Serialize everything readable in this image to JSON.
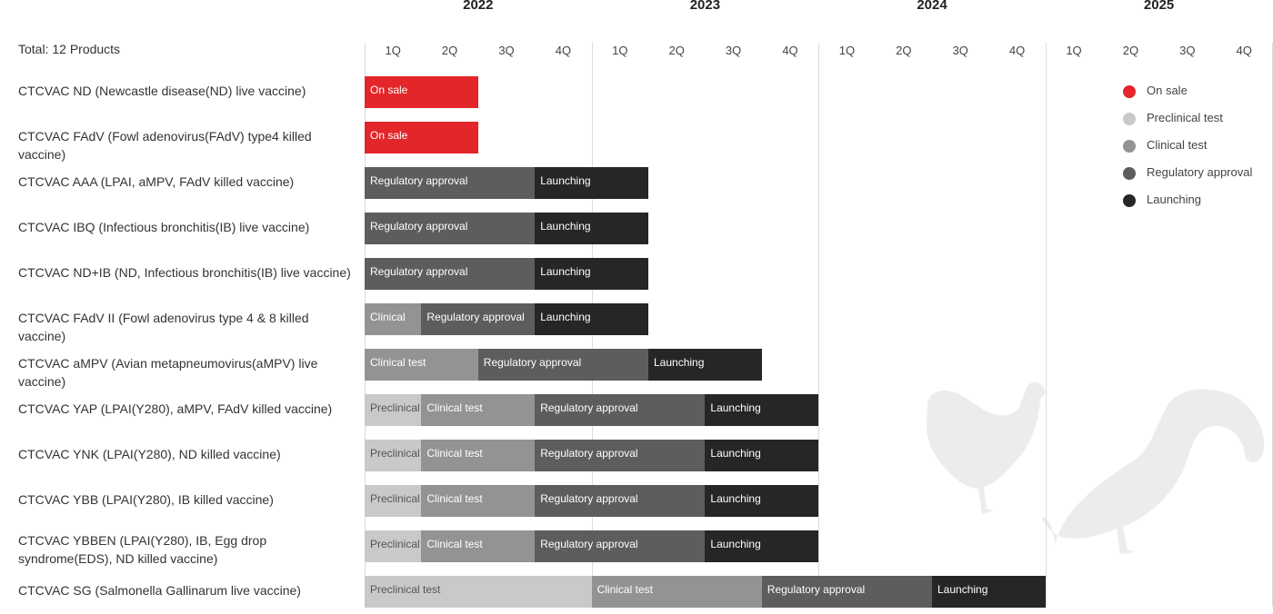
{
  "chart_data": {
    "type": "gantt",
    "total_label": "Total: 12 Products",
    "years": [
      "2022",
      "2023",
      "2024",
      "2025"
    ],
    "quarters": [
      "1Q",
      "2Q",
      "3Q",
      "4Q"
    ],
    "stage_colors": {
      "On sale": "#e3262a",
      "Preclinical": "#c9c9c9",
      "Preclinical test": "#c9c9c9",
      "Clinical": "#939393",
      "Clinical test": "#939393",
      "Regulatory approval": "#5d5d5d",
      "Launching": "#262626"
    },
    "legend": [
      {
        "label": "On sale",
        "color": "#e3262a"
      },
      {
        "label": "Preclinical test",
        "color": "#c9c9c9"
      },
      {
        "label": "Clinical test",
        "color": "#939393"
      },
      {
        "label": "Regulatory approval",
        "color": "#5d5d5d"
      },
      {
        "label": "Launching",
        "color": "#262626"
      }
    ],
    "products": [
      {
        "name": "CTCVAC ND (Newcastle disease(ND) live vaccine)",
        "segments": [
          {
            "stage": "On sale",
            "start": 0,
            "end": 2
          }
        ]
      },
      {
        "name": "CTCVAC FAdV (Fowl adenovirus(FAdV) type4 killed vaccine)",
        "segments": [
          {
            "stage": "On sale",
            "start": 0,
            "end": 2
          }
        ]
      },
      {
        "name": "CTCVAC AAA (LPAI, aMPV, FAdV killed vaccine)",
        "segments": [
          {
            "stage": "Regulatory approval",
            "start": 0,
            "end": 3
          },
          {
            "stage": "Launching",
            "start": 3,
            "end": 5
          }
        ]
      },
      {
        "name": "CTCVAC IBQ (Infectious bronchitis(IB) live vaccine)",
        "segments": [
          {
            "stage": "Regulatory approval",
            "start": 0,
            "end": 3
          },
          {
            "stage": "Launching",
            "start": 3,
            "end": 5
          }
        ]
      },
      {
        "name": "CTCVAC ND+IB (ND, Infectious bronchitis(IB) live vaccine)",
        "segments": [
          {
            "stage": "Regulatory approval",
            "start": 0,
            "end": 3
          },
          {
            "stage": "Launching",
            "start": 3,
            "end": 5
          }
        ]
      },
      {
        "name": "CTCVAC FAdV II (Fowl adenovirus type 4 & 8 killed vaccine)",
        "segments": [
          {
            "stage": "Clinical",
            "start": 0,
            "end": 1
          },
          {
            "stage": "Regulatory approval",
            "start": 1,
            "end": 3
          },
          {
            "stage": "Launching",
            "start": 3,
            "end": 5
          }
        ]
      },
      {
        "name": "CTCVAC aMPV (Avian metapneumovirus(aMPV) live vaccine)",
        "segments": [
          {
            "stage": "Clinical test",
            "start": 0,
            "end": 2
          },
          {
            "stage": "Regulatory approval",
            "start": 2,
            "end": 5
          },
          {
            "stage": "Launching",
            "start": 5,
            "end": 7
          }
        ]
      },
      {
        "name": "CTCVAC YAP (LPAI(Y280), aMPV, FAdV killed vaccine)",
        "segments": [
          {
            "stage": "Preclinical",
            "start": 0,
            "end": 1
          },
          {
            "stage": "Clinical test",
            "start": 1,
            "end": 3
          },
          {
            "stage": "Regulatory approval",
            "start": 3,
            "end": 6
          },
          {
            "stage": "Launching",
            "start": 6,
            "end": 8
          }
        ]
      },
      {
        "name": "CTCVAC YNK (LPAI(Y280), ND killed vaccine)",
        "segments": [
          {
            "stage": "Preclinical",
            "start": 0,
            "end": 1
          },
          {
            "stage": "Clinical test",
            "start": 1,
            "end": 3
          },
          {
            "stage": "Regulatory approval",
            "start": 3,
            "end": 6
          },
          {
            "stage": "Launching",
            "start": 6,
            "end": 8
          }
        ]
      },
      {
        "name": "CTCVAC YBB (LPAI(Y280), IB killed vaccine)",
        "segments": [
          {
            "stage": "Preclinical",
            "start": 0,
            "end": 1
          },
          {
            "stage": "Clinical test",
            "start": 1,
            "end": 3
          },
          {
            "stage": "Regulatory approval",
            "start": 3,
            "end": 6
          },
          {
            "stage": "Launching",
            "start": 6,
            "end": 8
          }
        ]
      },
      {
        "name": "CTCVAC YBBEN (LPAI(Y280), IB, Egg drop syndrome(EDS), ND killed vaccine)",
        "segments": [
          {
            "stage": "Preclinical",
            "start": 0,
            "end": 1
          },
          {
            "stage": "Clinical test",
            "start": 1,
            "end": 3
          },
          {
            "stage": "Regulatory approval",
            "start": 3,
            "end": 6
          },
          {
            "stage": "Launching",
            "start": 6,
            "end": 8
          }
        ]
      },
      {
        "name": "CTCVAC SG (Salmonella Gallinarum live vaccine)",
        "segments": [
          {
            "stage": "Preclinical test",
            "start": 0,
            "end": 4
          },
          {
            "stage": "Clinical test",
            "start": 4,
            "end": 7
          },
          {
            "stage": "Regulatory approval",
            "start": 7,
            "end": 10
          },
          {
            "stage": "Launching",
            "start": 10,
            "end": 12
          }
        ]
      }
    ]
  }
}
